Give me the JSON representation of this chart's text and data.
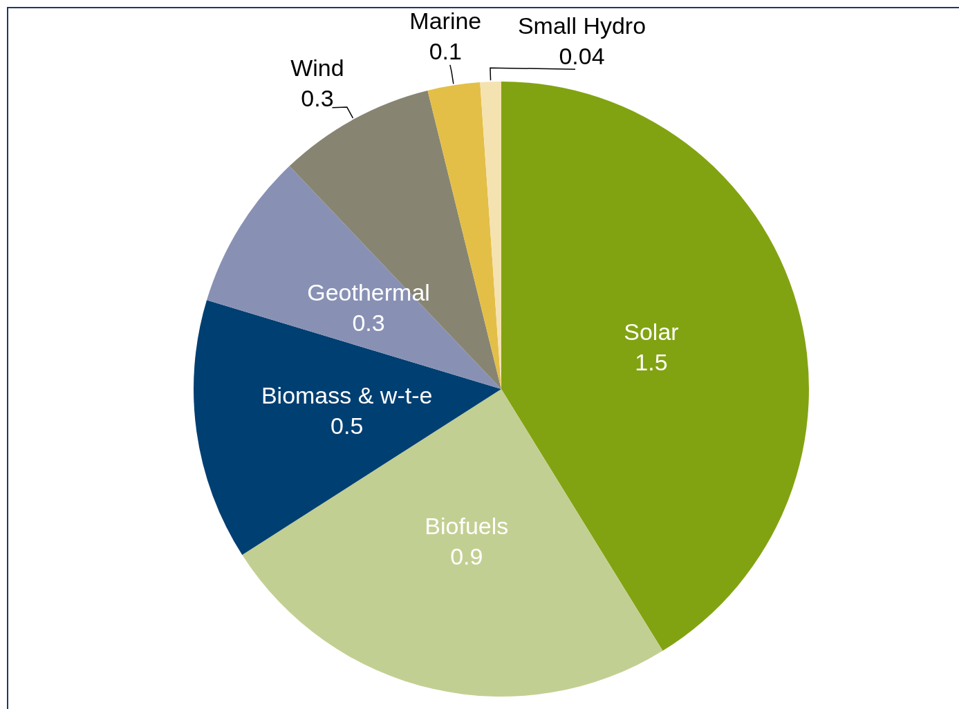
{
  "chart_data": {
    "type": "pie",
    "categories": [
      "Solar",
      "Biofuels",
      "Biomass & w-t-e",
      "Geothermal",
      "Wind",
      "Marine",
      "Small Hydro"
    ],
    "values": [
      1.5,
      0.9,
      0.5,
      0.3,
      0.3,
      0.1,
      0.04
    ],
    "colors": [
      "#82a311",
      "#c2cf92",
      "#003f72",
      "#8891b4",
      "#878572",
      "#e3bf48",
      "#f5e2b1"
    ],
    "data_labels": true,
    "legend": false
  }
}
